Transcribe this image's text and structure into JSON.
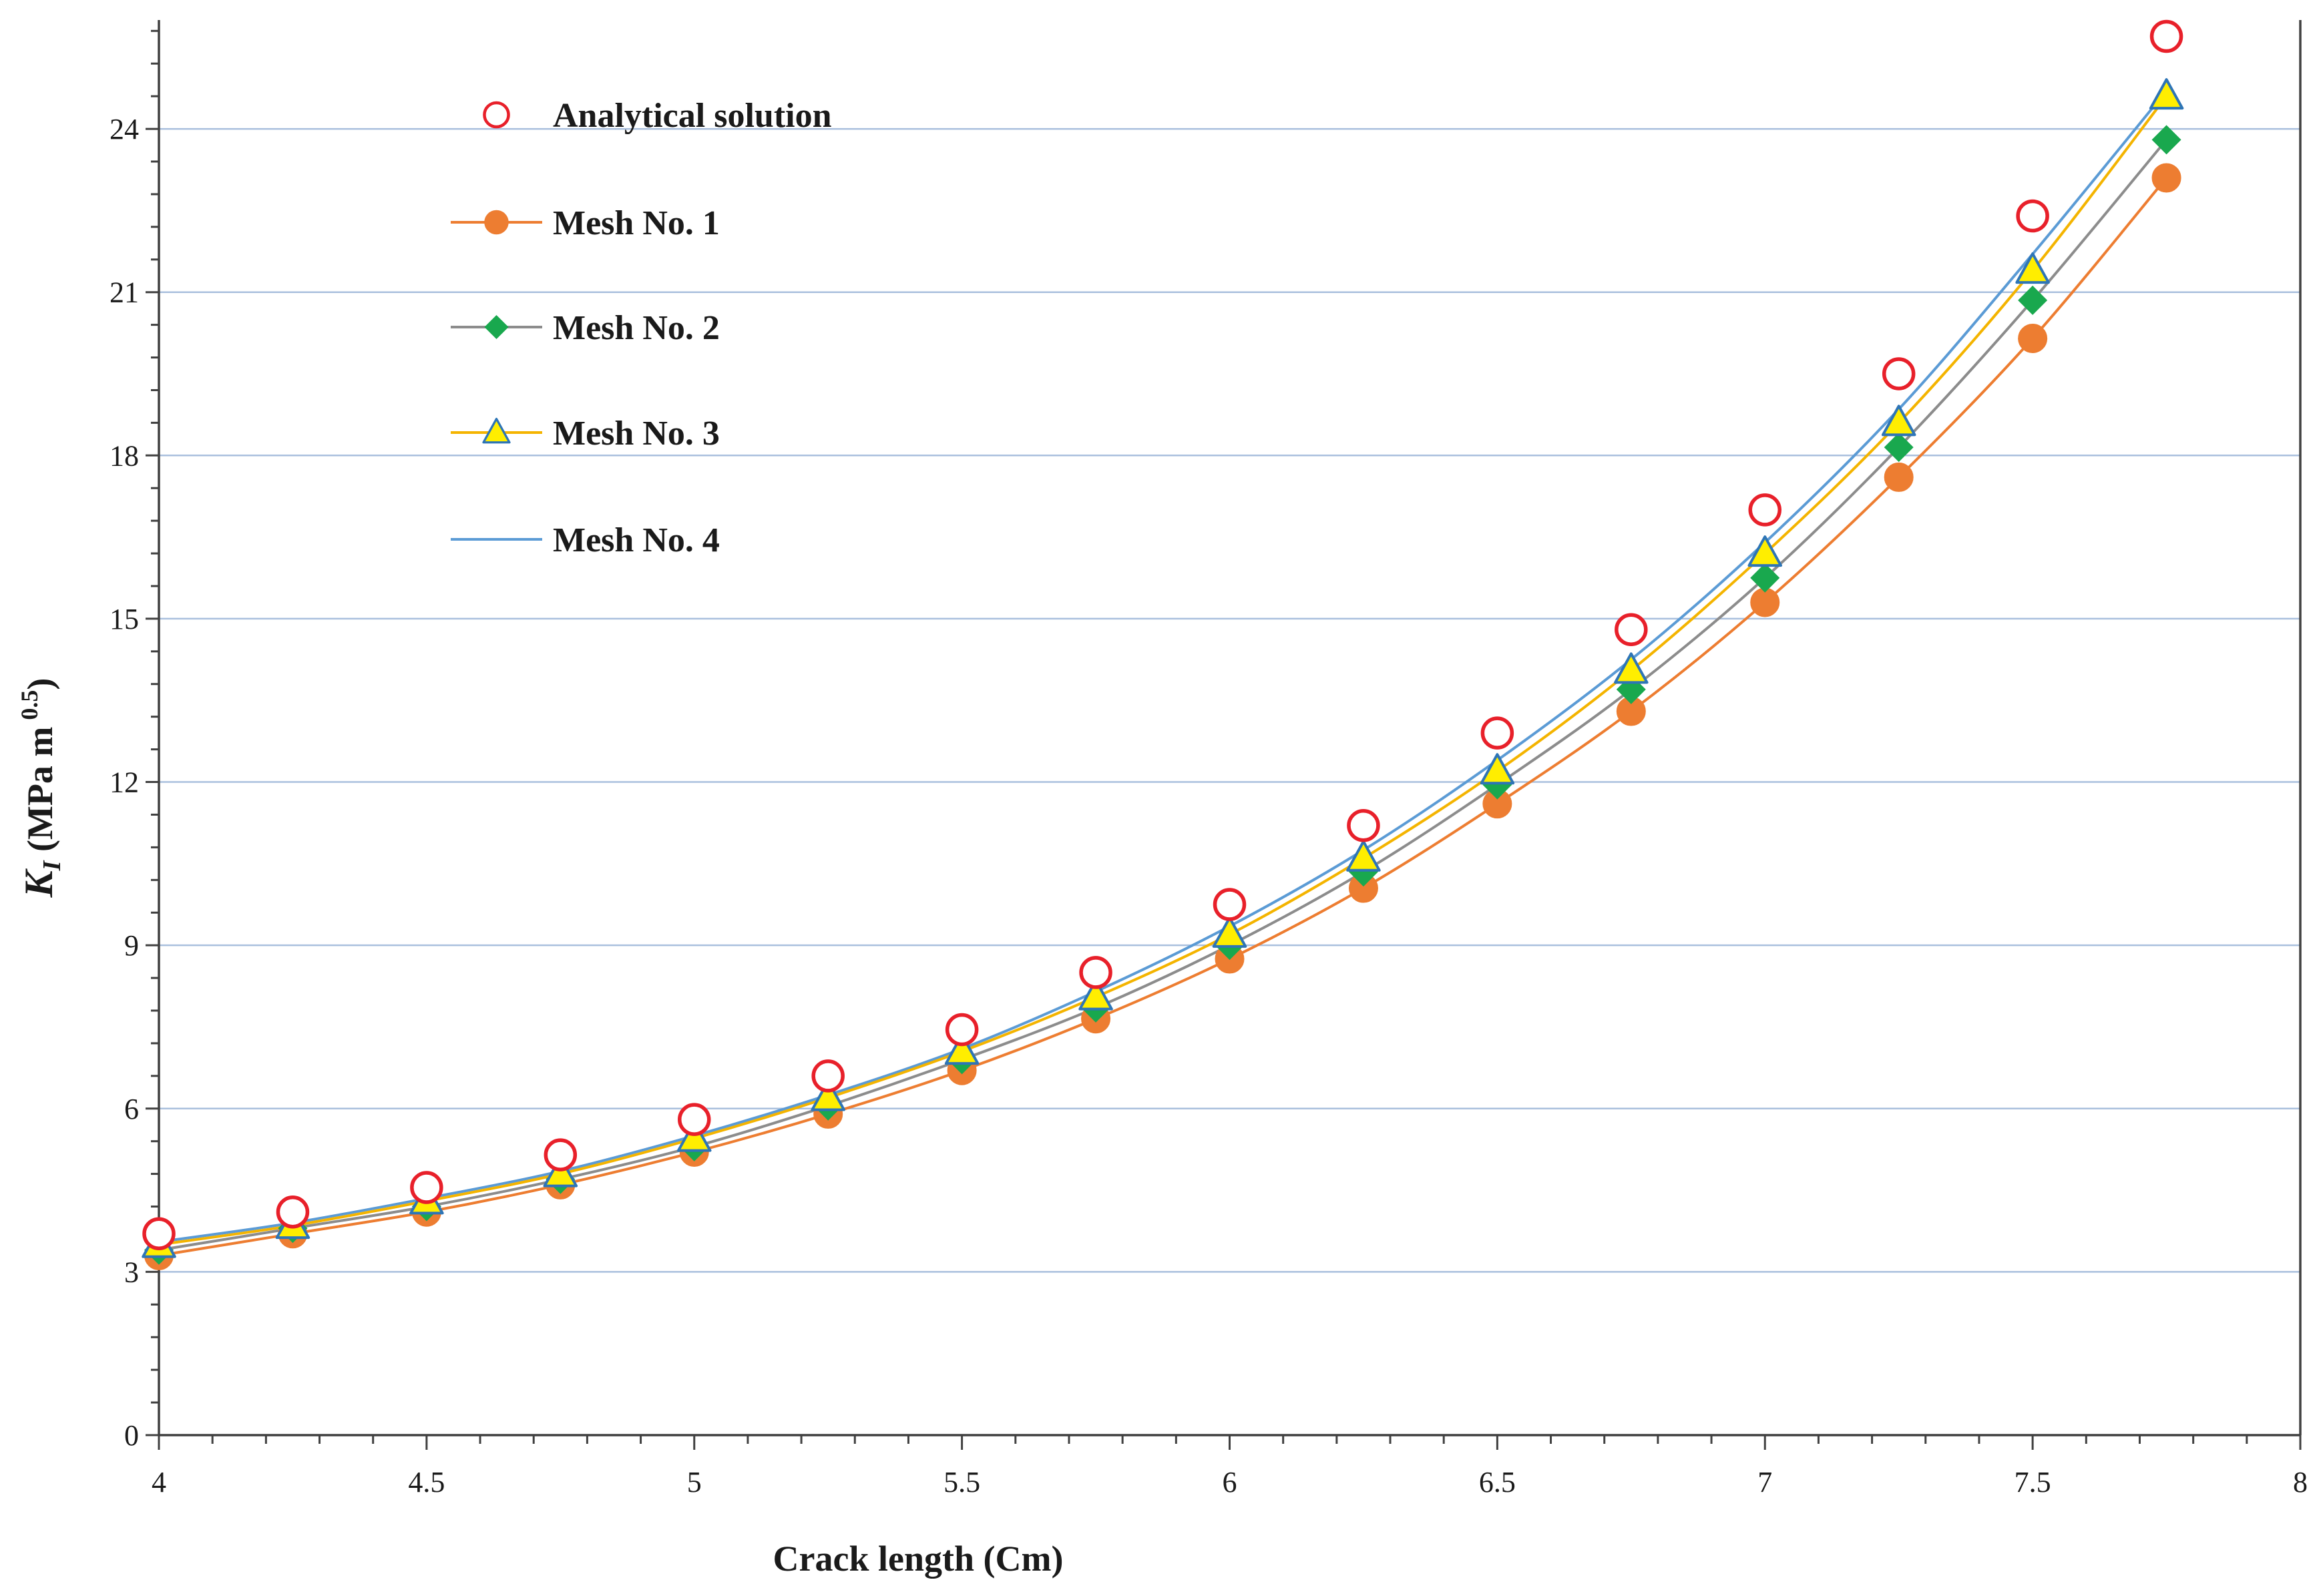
{
  "chart_data": {
    "type": "line",
    "title": "",
    "xlabel": "Crack length (Cm)",
    "ylabel": {
      "symbol": "K",
      "subscript": "I",
      "units": " (MPa m",
      "exponent": "0.5",
      "close": ")"
    },
    "xlim": [
      4,
      8
    ],
    "ylim": [
      0,
      26
    ],
    "x_ticks": [
      "4",
      "4.5",
      "5",
      "5.5",
      "6",
      "6.5",
      "7",
      "7.5",
      "8"
    ],
    "y_ticks": [
      "0",
      "3",
      "6",
      "9",
      "12",
      "15",
      "18",
      "21",
      "24"
    ],
    "x": [
      4,
      4.25,
      4.5,
      4.75,
      5,
      5.25,
      5.5,
      5.75,
      6,
      6.25,
      6.5,
      6.75,
      7,
      7.25,
      7.5,
      7.75
    ],
    "legend_position": "top-left",
    "grid": "horizontal",
    "colors": {
      "grid": "#a9bfdd",
      "axis": "#404040",
      "analytical": "#e8202a",
      "mesh1": "#ed7d31",
      "mesh2": "#19a84e",
      "mesh2_line": "#8c8c8c",
      "mesh3_fill": "#ffee00",
      "mesh3_line": "#f4b400",
      "mesh3_edge": "#2e75b6",
      "mesh4": "#5b9bd5"
    },
    "series": [
      {
        "name": "Analytical solution",
        "style": "open-circle",
        "values": [
          3.7,
          4.1,
          4.55,
          5.15,
          5.8,
          6.6,
          7.45,
          8.5,
          9.75,
          11.2,
          12.9,
          14.8,
          17.0,
          19.5,
          22.4,
          25.7
        ]
      },
      {
        "name": "Mesh No. 1",
        "style": "line-circle",
        "values": [
          3.3,
          3.7,
          4.1,
          4.6,
          5.2,
          5.9,
          6.7,
          7.65,
          8.75,
          10.05,
          11.6,
          13.3,
          15.3,
          17.6,
          20.15,
          23.1
        ]
      },
      {
        "name": "Mesh No. 2",
        "style": "line-diamond",
        "values": [
          3.4,
          3.8,
          4.2,
          4.7,
          5.3,
          6.05,
          6.9,
          7.85,
          9.0,
          10.35,
          11.95,
          13.7,
          15.75,
          18.15,
          20.85,
          23.8
        ]
      },
      {
        "name": "Mesh No. 3",
        "style": "line-triangle",
        "values": [
          3.5,
          3.85,
          4.3,
          4.8,
          5.45,
          6.2,
          7.05,
          8.05,
          9.2,
          10.6,
          12.2,
          14.05,
          16.2,
          18.6,
          21.4,
          24.6
        ]
      },
      {
        "name": "Mesh No. 4",
        "style": "line",
        "values": [
          3.55,
          3.9,
          4.35,
          4.85,
          5.5,
          6.25,
          7.1,
          8.15,
          9.35,
          10.75,
          12.4,
          14.25,
          16.4,
          18.85,
          21.7,
          24.7
        ]
      }
    ]
  }
}
